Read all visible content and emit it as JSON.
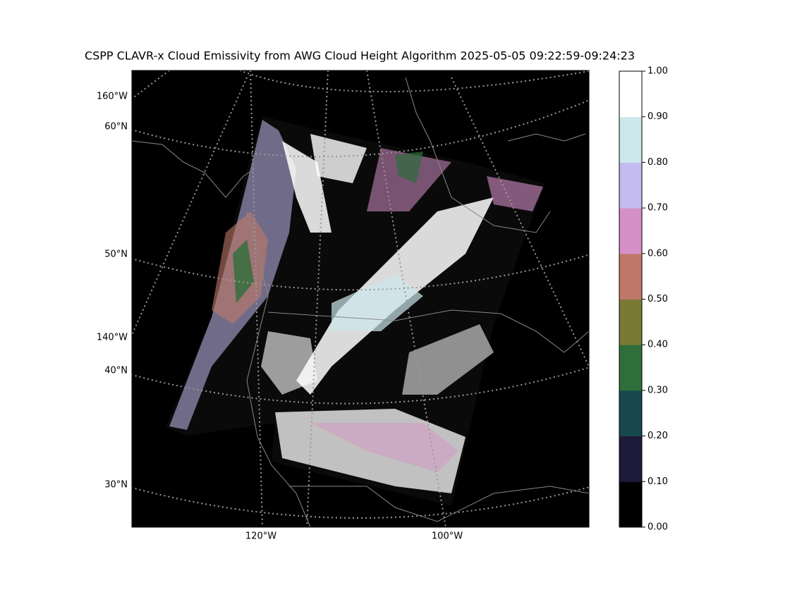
{
  "title": "CSPP CLAVR-x Cloud Emissivity from AWG Cloud Height Algorithm 2025-05-05 09:22:59-09:24:23",
  "map": {
    "left_labels": [
      "160°W",
      "60°N",
      "50°N",
      "140°W",
      "40°N",
      "30°N"
    ],
    "bottom_labels": [
      "120°W",
      "100°W"
    ]
  },
  "colorbar": {
    "lim": [
      0,
      1
    ],
    "ticks": [
      {
        "value": 0,
        "label": "0.00"
      },
      {
        "value": 0.1,
        "label": "0.10"
      },
      {
        "value": 0.2,
        "label": "0.20"
      },
      {
        "value": 0.3,
        "label": "0.30"
      },
      {
        "value": 0.4,
        "label": "0.40"
      },
      {
        "value": 0.5,
        "label": "0.50"
      },
      {
        "value": 0.6,
        "label": "0.60"
      },
      {
        "value": 0.7,
        "label": "0.70"
      },
      {
        "value": 0.8,
        "label": "0.80"
      },
      {
        "value": 0.9,
        "label": "0.90"
      },
      {
        "value": 1,
        "label": "1.00"
      }
    ],
    "colors": [
      "#000000",
      "#1e1a3a",
      "#18474d",
      "#2e6e3a",
      "#7a7a35",
      "#c07868",
      "#d690c8",
      "#c4bcf0",
      "#cce8ec",
      "#ffffff"
    ]
  }
}
